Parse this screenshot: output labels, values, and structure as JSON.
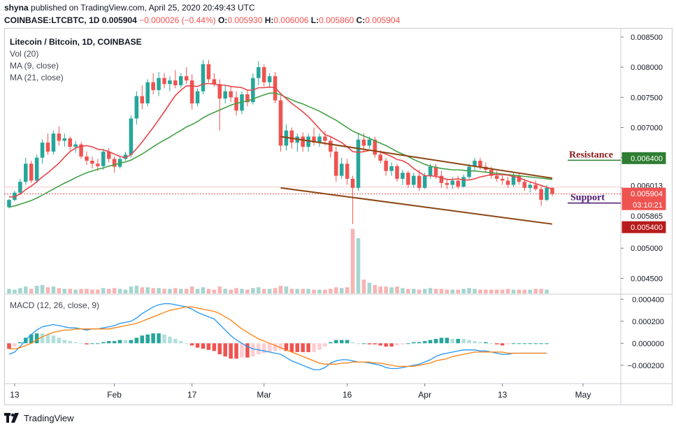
{
  "header": {
    "author": "shyna",
    "published_text": "published on TradingView.com, April 25, 2020 20:49:43 UTC",
    "symbol": "COINBASE:LTCBTC, 1D",
    "last": "0.005904",
    "change": "−0.000026 (−0.44%)",
    "o_label": "O:",
    "o_val": "0.005930",
    "h_label": "H:",
    "h_val": "0.006006",
    "l_label": "L:",
    "l_val": "0.005860",
    "c_label": "C:",
    "c_val": "0.005904"
  },
  "legend": {
    "title": "Litecoin / Bitcoin, 1D, COINBASE",
    "vol": "Vol (20)",
    "ma9": "MA (9, close)",
    "ma21": "MA (21, close)",
    "macd": "MACD (12, 26, close, 9)"
  },
  "annotations": {
    "resistance": "Resistance",
    "support": "Support"
  },
  "footer": {
    "brand": "TradingView"
  },
  "colors": {
    "up": "#26a69a",
    "down": "#ef5350",
    "ma9": "#e8444a",
    "ma21": "#43a047",
    "trend": "#8b4513",
    "macd_line": "#2196f3",
    "signal_line": "#ff7f0e",
    "resistance_text": "#8b1a1a",
    "support_text": "#4a1570"
  },
  "chart_data": {
    "type": "candlestick",
    "x_ticks": [
      "13",
      "Feb",
      "17",
      "Mar",
      "16",
      "Apr",
      "13",
      "May"
    ],
    "price_axis": {
      "ticks": [
        "0.008500",
        "0.008000",
        "0.007500",
        "0.007000",
        "0.006500",
        "0.006000",
        "0.005000",
        "0.004500"
      ],
      "ylim": [
        0.00425,
        0.00865
      ]
    },
    "price_labels": [
      {
        "text": "0.006400",
        "value": 0.0064,
        "bg": "#2e7d32"
      },
      {
        "text": "0.006013",
        "value": 0.006013,
        "bg": "#ffffff",
        "fg": "#131722"
      },
      {
        "text": "0.005904",
        "value": 0.005904,
        "bg": "#ef5350"
      },
      {
        "text": "03:10:21",
        "value": 0.00581,
        "bg": "#ef5350"
      },
      {
        "text": "0.005865",
        "value": 0.005865,
        "bg": "#ffffff",
        "fg": "#131722"
      },
      {
        "text": "0.005400",
        "value": 0.0054,
        "bg": "#b71c1c"
      }
    ],
    "candles_ohlc": [
      [
        0.00568,
        0.00582,
        0.00566,
        0.0058
      ],
      [
        0.0058,
        0.00595,
        0.00578,
        0.00592
      ],
      [
        0.00592,
        0.00615,
        0.00588,
        0.0061
      ],
      [
        0.0061,
        0.0065,
        0.00605,
        0.0064
      ],
      [
        0.0064,
        0.00645,
        0.00608,
        0.00612
      ],
      [
        0.00612,
        0.00655,
        0.00608,
        0.0065
      ],
      [
        0.0065,
        0.0068,
        0.0064,
        0.00675
      ],
      [
        0.00675,
        0.0069,
        0.00655,
        0.0066
      ],
      [
        0.0066,
        0.00695,
        0.00655,
        0.0069
      ],
      [
        0.0069,
        0.00702,
        0.0067,
        0.00678
      ],
      [
        0.00678,
        0.0069,
        0.00668,
        0.00682
      ],
      [
        0.00682,
        0.00685,
        0.00662,
        0.00668
      ],
      [
        0.00668,
        0.00678,
        0.00658,
        0.00672
      ],
      [
        0.00672,
        0.00676,
        0.00648,
        0.00652
      ],
      [
        0.00652,
        0.0066,
        0.00638,
        0.00645
      ],
      [
        0.00645,
        0.00652,
        0.00632,
        0.0064
      ],
      [
        0.0064,
        0.00648,
        0.00628,
        0.00636
      ],
      [
        0.00636,
        0.00665,
        0.0063,
        0.0066
      ],
      [
        0.0066,
        0.00666,
        0.00642,
        0.00648
      ],
      [
        0.00648,
        0.00652,
        0.00625,
        0.00635
      ],
      [
        0.00635,
        0.00652,
        0.00632,
        0.00648
      ],
      [
        0.00648,
        0.0066,
        0.00645,
        0.00655
      ],
      [
        0.00655,
        0.0072,
        0.0065,
        0.00715
      ],
      [
        0.00715,
        0.0076,
        0.00705,
        0.00752
      ],
      [
        0.00752,
        0.0077,
        0.0073,
        0.0074
      ],
      [
        0.0074,
        0.0078,
        0.00735,
        0.00775
      ],
      [
        0.00775,
        0.0079,
        0.00755,
        0.00762
      ],
      [
        0.00762,
        0.00792,
        0.00752,
        0.00782
      ],
      [
        0.00782,
        0.0079,
        0.00765,
        0.00772
      ],
      [
        0.00772,
        0.00785,
        0.0076,
        0.00778
      ],
      [
        0.00778,
        0.00795,
        0.00765,
        0.0077
      ],
      [
        0.0077,
        0.0079,
        0.00765,
        0.00785
      ],
      [
        0.00785,
        0.008,
        0.00772,
        0.00778
      ],
      [
        0.00778,
        0.00788,
        0.0073,
        0.0074
      ],
      [
        0.0074,
        0.00765,
        0.00735,
        0.0076
      ],
      [
        0.0076,
        0.00812,
        0.00755,
        0.00805
      ],
      [
        0.00805,
        0.00812,
        0.00775,
        0.0078
      ],
      [
        0.0078,
        0.0079,
        0.00768,
        0.00772
      ],
      [
        0.00772,
        0.0078,
        0.00695,
        0.00748
      ],
      [
        0.00748,
        0.0077,
        0.0074,
        0.0076
      ],
      [
        0.0076,
        0.00768,
        0.00742,
        0.0075
      ],
      [
        0.0075,
        0.0076,
        0.0072,
        0.00728
      ],
      [
        0.00728,
        0.0076,
        0.00722,
        0.00755
      ],
      [
        0.00755,
        0.00762,
        0.00735,
        0.00742
      ],
      [
        0.00742,
        0.0079,
        0.00738,
        0.00782
      ],
      [
        0.00782,
        0.0081,
        0.0077,
        0.008
      ],
      [
        0.008,
        0.00805,
        0.00768,
        0.00775
      ],
      [
        0.00775,
        0.0079,
        0.00765,
        0.00785
      ],
      [
        0.00785,
        0.00792,
        0.0074,
        0.00745
      ],
      [
        0.00745,
        0.00752,
        0.0066,
        0.0067
      ],
      [
        0.0067,
        0.00705,
        0.00662,
        0.00695
      ],
      [
        0.00695,
        0.007,
        0.00665,
        0.00675
      ],
      [
        0.00675,
        0.0069,
        0.0066,
        0.00685
      ],
      [
        0.00685,
        0.00692,
        0.0066,
        0.00668
      ],
      [
        0.00668,
        0.0069,
        0.0066,
        0.00685
      ],
      [
        0.00685,
        0.007,
        0.0067,
        0.00675
      ],
      [
        0.00675,
        0.0069,
        0.00668,
        0.00685
      ],
      [
        0.00685,
        0.00695,
        0.0067,
        0.00678
      ],
      [
        0.00678,
        0.00685,
        0.0065,
        0.0066
      ],
      [
        0.0066,
        0.00668,
        0.0061,
        0.0062
      ],
      [
        0.0062,
        0.0065,
        0.00615,
        0.0064
      ],
      [
        0.0064,
        0.00648,
        0.00605,
        0.00615
      ],
      [
        0.00615,
        0.0062,
        0.0054,
        0.006
      ],
      [
        0.006,
        0.0069,
        0.00595,
        0.0068
      ],
      [
        0.0068,
        0.0069,
        0.0066,
        0.0067
      ],
      [
        0.0067,
        0.00685,
        0.00665,
        0.0068
      ],
      [
        0.0068,
        0.00685,
        0.0065,
        0.00655
      ],
      [
        0.00655,
        0.00662,
        0.0064,
        0.00645
      ],
      [
        0.00645,
        0.0065,
        0.0062,
        0.00628
      ],
      [
        0.00628,
        0.00642,
        0.0062,
        0.00636
      ],
      [
        0.00636,
        0.0064,
        0.0061,
        0.00615
      ],
      [
        0.00615,
        0.0063,
        0.00605,
        0.00625
      ],
      [
        0.00625,
        0.00628,
        0.006,
        0.00605
      ],
      [
        0.00605,
        0.00625,
        0.006,
        0.0062
      ],
      [
        0.0062,
        0.0063,
        0.00595,
        0.006
      ],
      [
        0.006,
        0.00625,
        0.00598,
        0.0062
      ],
      [
        0.0062,
        0.0064,
        0.00615,
        0.00635
      ],
      [
        0.00635,
        0.0064,
        0.00615,
        0.0062
      ],
      [
        0.0062,
        0.00628,
        0.006,
        0.00608
      ],
      [
        0.00608,
        0.00615,
        0.00598,
        0.00605
      ],
      [
        0.00605,
        0.00618,
        0.00598,
        0.00612
      ],
      [
        0.00612,
        0.0062,
        0.00598,
        0.00602
      ],
      [
        0.00602,
        0.00622,
        0.006,
        0.00618
      ],
      [
        0.00618,
        0.0064,
        0.00615,
        0.00635
      ],
      [
        0.00635,
        0.0065,
        0.00628,
        0.00645
      ],
      [
        0.00645,
        0.0065,
        0.0063,
        0.00635
      ],
      [
        0.00635,
        0.00642,
        0.00625,
        0.0063
      ],
      [
        0.0063,
        0.00635,
        0.00615,
        0.0062
      ],
      [
        0.0062,
        0.00628,
        0.0061,
        0.00615
      ],
      [
        0.00615,
        0.00622,
        0.00605,
        0.00612
      ],
      [
        0.00612,
        0.00618,
        0.006,
        0.00605
      ],
      [
        0.00605,
        0.00625,
        0.00602,
        0.0062
      ],
      [
        0.0062,
        0.00625,
        0.00605,
        0.0061
      ],
      [
        0.0061,
        0.00615,
        0.00595,
        0.006
      ],
      [
        0.006,
        0.0061,
        0.00592,
        0.00605
      ],
      [
        0.00605,
        0.00612,
        0.00595,
        0.00598
      ],
      [
        0.00598,
        0.00605,
        0.0057,
        0.0058
      ],
      [
        0.0058,
        0.00605,
        0.00578,
        0.006
      ],
      [
        0.006,
        0.00601,
        0.00586,
        0.0059
      ]
    ],
    "volume": [
      0.3,
      0.25,
      0.35,
      0.45,
      0.3,
      0.5,
      0.55,
      0.4,
      0.45,
      0.35,
      0.3,
      0.3,
      0.25,
      0.3,
      0.3,
      0.25,
      0.25,
      0.35,
      0.3,
      0.35,
      0.3,
      0.25,
      0.45,
      0.5,
      0.4,
      0.4,
      0.35,
      0.35,
      0.3,
      0.3,
      0.35,
      0.3,
      0.3,
      0.45,
      0.3,
      0.4,
      0.3,
      0.25,
      0.45,
      0.3,
      0.25,
      0.35,
      0.3,
      0.25,
      0.35,
      0.4,
      0.3,
      0.3,
      0.35,
      0.5,
      0.45,
      0.3,
      0.3,
      0.3,
      0.3,
      0.25,
      0.25,
      0.25,
      0.3,
      0.4,
      0.35,
      0.4,
      4.2,
      3.6,
      0.9,
      0.7,
      0.55,
      0.45,
      0.45,
      0.4,
      0.45,
      0.35,
      0.3,
      0.3,
      0.25,
      0.3,
      0.35,
      0.3,
      0.3,
      0.25,
      0.25,
      0.25,
      0.3,
      0.35,
      0.3,
      0.25,
      0.25,
      0.25,
      0.25,
      0.25,
      0.3,
      0.25,
      0.25,
      0.25,
      0.25,
      0.3,
      0.3,
      0.25
    ],
    "ma9": [
      0.00585,
      0.00585,
      0.0059,
      0.00597,
      0.00603,
      0.0061,
      0.00618,
      0.00625,
      0.00633,
      0.00641,
      0.00651,
      0.0066,
      0.00666,
      0.00669,
      0.0067,
      0.00668,
      0.00664,
      0.00663,
      0.0066,
      0.00656,
      0.00652,
      0.0065,
      0.00655,
      0.00665,
      0.00676,
      0.00688,
      0.007,
      0.00713,
      0.00726,
      0.0074,
      0.00753,
      0.00762,
      0.00769,
      0.00769,
      0.00768,
      0.00772,
      0.00773,
      0.00772,
      0.0077,
      0.0077,
      0.00768,
      0.00767,
      0.00766,
      0.00762,
      0.00762,
      0.00766,
      0.00766,
      0.00767,
      0.00766,
      0.00756,
      0.00748,
      0.0074,
      0.00733,
      0.00726,
      0.00718,
      0.00708,
      0.00698,
      0.00688,
      0.00685,
      0.0068,
      0.00675,
      0.00668,
      0.0066,
      0.00659,
      0.0066,
      0.00662,
      0.00662,
      0.00659,
      0.00656,
      0.00652,
      0.00647,
      0.00645,
      0.0064,
      0.00632,
      0.00626,
      0.0062,
      0.0062,
      0.00619,
      0.00617,
      0.00614,
      0.00614,
      0.00615,
      0.00613,
      0.00613,
      0.00615,
      0.00618,
      0.0062,
      0.00622,
      0.00622,
      0.00622,
      0.00621,
      0.00619,
      0.00617,
      0.00613,
      0.0061,
      0.00607,
      0.00604,
      0.00601,
      0.00598
    ],
    "ma21": [
      0.00568,
      0.0057,
      0.00573,
      0.00576,
      0.00579,
      0.00583,
      0.00588,
      0.00593,
      0.00598,
      0.00603,
      0.00608,
      0.00612,
      0.00617,
      0.00621,
      0.00625,
      0.00628,
      0.00631,
      0.00633,
      0.00636,
      0.00638,
      0.00641,
      0.00643,
      0.00646,
      0.00651,
      0.00656,
      0.00662,
      0.00668,
      0.00674,
      0.00679,
      0.00684,
      0.0069,
      0.00695,
      0.00701,
      0.00705,
      0.0071,
      0.00716,
      0.00721,
      0.00725,
      0.00729,
      0.00733,
      0.00737,
      0.0074,
      0.00742,
      0.00744,
      0.00747,
      0.00751,
      0.00754,
      0.00757,
      0.00757,
      0.00754,
      0.0075,
      0.00746,
      0.00742,
      0.00739,
      0.00735,
      0.00731,
      0.00727,
      0.00722,
      0.00717,
      0.00712,
      0.00706,
      0.007,
      0.00694,
      0.0069,
      0.00686,
      0.00682,
      0.00678,
      0.00674,
      0.0067,
      0.00665,
      0.0066,
      0.00656,
      0.00652,
      0.00647,
      0.00643,
      0.00639,
      0.00636,
      0.00634,
      0.00632,
      0.00631,
      0.0063,
      0.0063,
      0.00629,
      0.00628,
      0.00628,
      0.00627,
      0.00626,
      0.00625,
      0.00624,
      0.00623,
      0.00622,
      0.00621,
      0.0062,
      0.00619,
      0.00618,
      0.00617,
      0.00616,
      0.00615,
      0.00614
    ],
    "trendlines": [
      {
        "x1": 49,
        "y1": 0.00685,
        "x2": 98,
        "y2": 0.00616
      },
      {
        "x1": 49,
        "y1": 0.006,
        "x2": 98,
        "y2": 0.0054
      }
    ],
    "resistance_level": 0.0064,
    "support_level": 0.0054,
    "macd_axis": {
      "ticks": [
        "0.000400",
        "0.000200",
        "0.000000",
        "−0.000200"
      ],
      "ylim": [
        -0.00036,
        0.00044
      ]
    },
    "macd_line": [
      -0.0001,
      -8e-05,
      -3e-05,
      3e-05,
      8e-05,
      0.00012,
      0.00015,
      0.00016,
      0.00017,
      0.00016,
      0.00015,
      0.00014,
      0.00014,
      0.00013,
      0.00012,
      0.00013,
      0.00013,
      0.00014,
      0.00015,
      0.00016,
      0.00018,
      0.00019,
      0.0002,
      0.00023,
      0.00027,
      0.0003,
      0.00033,
      0.00035,
      0.00036,
      0.00036,
      0.00035,
      0.00034,
      0.00033,
      0.00031,
      0.00028,
      0.00026,
      0.00024,
      0.00022,
      0.00017,
      0.00012,
      7e-05,
      3e-05,
      0.0,
      -3e-05,
      -5e-05,
      -6e-05,
      -7e-05,
      -8e-05,
      -9e-05,
      -0.0001,
      -0.00013,
      -0.00016,
      -0.00018,
      -0.0002,
      -0.00022,
      -0.00024,
      -0.00024,
      -0.00022,
      -0.00018,
      -0.00016,
      -0.00015,
      -0.00015,
      -0.00016,
      -0.00017,
      -0.00017,
      -0.00018,
      -0.00019,
      -0.0002,
      -0.00022,
      -0.00023,
      -0.00023,
      -0.00022,
      -0.00021,
      -0.0002,
      -0.00019,
      -0.00017,
      -0.00015,
      -0.00012,
      -0.0001,
      -9e-05,
      -8e-05,
      -7e-05,
      -6e-05,
      -6e-05,
      -6e-05,
      -7e-05,
      -7e-05,
      -8e-05,
      -9e-05,
      -0.0001,
      -0.0001,
      -9e-05,
      -9e-05,
      -9e-05,
      -9e-05,
      -9e-05,
      -9e-05,
      -9e-05
    ],
    "signal_line": [
      -5e-05,
      -5e-05,
      -4e-05,
      -2e-05,
      0.0,
      3e-05,
      6e-05,
      8e-05,
      0.0001,
      0.00011,
      0.00012,
      0.00012,
      0.00013,
      0.00013,
      0.00013,
      0.00013,
      0.00013,
      0.00013,
      0.00013,
      0.00014,
      0.00015,
      0.00016,
      0.00017,
      0.00018,
      0.0002,
      0.00022,
      0.00024,
      0.00026,
      0.00028,
      0.0003,
      0.00031,
      0.00032,
      0.00033,
      0.00033,
      0.00032,
      0.00031,
      0.0003,
      0.00029,
      0.00027,
      0.00024,
      0.00021,
      0.00017,
      0.00013,
      0.0001,
      7e-05,
      4e-05,
      2e-05,
      0.0,
      -2e-05,
      -4e-05,
      -6e-05,
      -8e-05,
      -0.0001,
      -0.00012,
      -0.00014,
      -0.00016,
      -0.00018,
      -0.00019,
      -0.00019,
      -0.00019,
      -0.00018,
      -0.00018,
      -0.00017,
      -0.00017,
      -0.00017,
      -0.00017,
      -0.00018,
      -0.00018,
      -0.00019,
      -0.0002,
      -0.00021,
      -0.00021,
      -0.00021,
      -0.00021,
      -0.0002,
      -0.00019,
      -0.00018,
      -0.00016,
      -0.00015,
      -0.00014,
      -0.00012,
      -0.00011,
      -0.0001,
      -9e-05,
      -8e-05,
      -8e-05,
      -8e-05,
      -8e-05,
      -8e-05,
      -8e-05,
      -9e-05,
      -9e-05,
      -9e-05,
      -9e-05,
      -9e-05,
      -9e-05,
      -9e-05,
      -9e-05
    ]
  }
}
